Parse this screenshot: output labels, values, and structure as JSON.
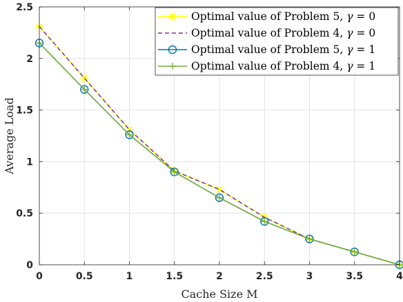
{
  "chart_data": {
    "type": "line",
    "xlabel": "Cache Size M",
    "ylabel": "Average Load",
    "xlim": [
      0,
      4
    ],
    "ylim": [
      0,
      2.5
    ],
    "xticks": [
      0,
      0.5,
      1,
      1.5,
      2,
      2.5,
      3,
      3.5,
      4
    ],
    "xtick_labels": [
      "0",
      "0.5",
      "1",
      "1.5",
      "2",
      "2.5",
      "3",
      "3.5",
      "4"
    ],
    "yticks": [
      0,
      0.5,
      1,
      1.5,
      2,
      2.5
    ],
    "ytick_labels": [
      "0",
      "0.5",
      "1",
      "1.5",
      "2",
      "2.5"
    ],
    "grid": true,
    "legend_position": "top-right",
    "x": [
      0,
      0.5,
      1,
      1.5,
      2,
      2.5,
      3,
      3.5,
      4
    ],
    "series": [
      {
        "name": "Optimal value of Problem 5, γ = 0",
        "legend_prefix": "Optimal value of Problem 5, ",
        "legend_gamma": "γ",
        "legend_suffix": " = 0",
        "values": [
          2.31,
          1.81,
          1.31,
          0.91,
          0.73,
          0.46,
          0.25,
          0.125,
          0
        ],
        "color": "#ffff00",
        "style": "solid",
        "marker": "asterisk"
      },
      {
        "name": "Optimal value of Problem 4, γ = 0",
        "legend_prefix": "Optimal value of Problem 4, ",
        "legend_gamma": "γ",
        "legend_suffix": " = 0",
        "values": [
          2.31,
          1.81,
          1.31,
          0.91,
          0.73,
          0.46,
          0.25,
          0.125,
          0
        ],
        "color": "#7e2f8e",
        "style": "dashed",
        "marker": "none"
      },
      {
        "name": "Optimal value of Problem 5, γ = 1",
        "legend_prefix": "Optimal value of Problem 5, ",
        "legend_gamma": "γ",
        "legend_suffix": " = 1",
        "values": [
          2.15,
          1.7,
          1.26,
          0.9,
          0.65,
          0.42,
          0.25,
          0.125,
          0
        ],
        "color": "#0072bd",
        "style": "solid",
        "marker": "circle"
      },
      {
        "name": "Optimal value of Problem 4, γ = 1",
        "legend_prefix": "Optimal value of Problem 4, ",
        "legend_gamma": "γ",
        "legend_suffix": " = 1",
        "values": [
          2.15,
          1.7,
          1.26,
          0.9,
          0.65,
          0.42,
          0.25,
          0.125,
          0
        ],
        "color": "#77ac30",
        "style": "solid",
        "marker": "plus"
      }
    ]
  }
}
